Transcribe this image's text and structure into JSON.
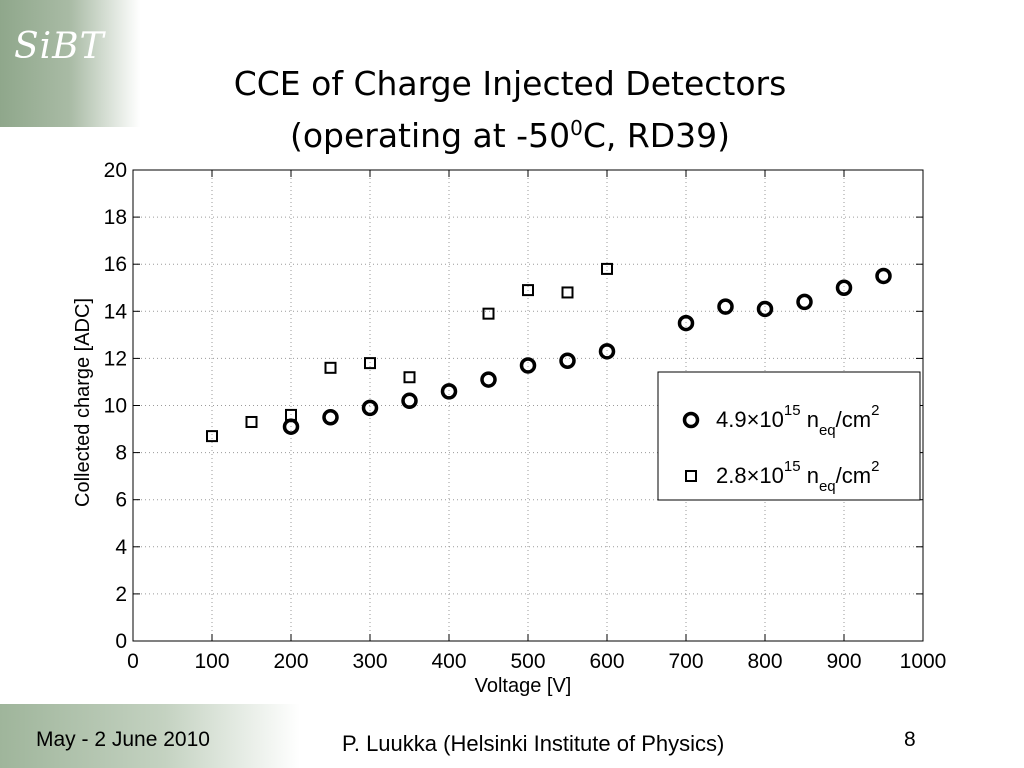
{
  "logo": {
    "text": "SiBT"
  },
  "slide": {
    "title_line1": "CCE of Charge Injected Detectors",
    "title_line2_prefix": "(operating at -50",
    "title_line2_sup": "0",
    "title_line2_suffix": "C, RD39)"
  },
  "footer": {
    "date": "May - 2 June 2010",
    "author": "P. Luukka (Helsinki Institute of Physics)",
    "page": "8"
  },
  "chart_data": {
    "type": "scatter",
    "xlabel": "Voltage [V]",
    "ylabel": "Collected charge [ADC]",
    "xlim": [
      0,
      1000
    ],
    "ylim": [
      0,
      20
    ],
    "xticks": [
      0,
      100,
      200,
      300,
      400,
      500,
      600,
      700,
      800,
      900,
      1000
    ],
    "yticks": [
      0,
      2,
      4,
      6,
      8,
      10,
      12,
      14,
      16,
      18,
      20
    ],
    "grid": true,
    "legend_position": "right",
    "series": [
      {
        "name": "4.9×10^15 n_eq/cm^2",
        "legend": {
          "base": "4.9×10",
          "exp": "15",
          "n": " n",
          "sub": "eq",
          "unit": "/cm",
          "unit_exp": "2"
        },
        "marker": "circle",
        "color": "#000000",
        "points": [
          [
            200,
            9.1
          ],
          [
            250,
            9.5
          ],
          [
            300,
            9.9
          ],
          [
            350,
            10.2
          ],
          [
            400,
            10.6
          ],
          [
            450,
            11.1
          ],
          [
            500,
            11.7
          ],
          [
            550,
            11.9
          ],
          [
            600,
            12.3
          ],
          [
            700,
            13.5
          ],
          [
            750,
            14.2
          ],
          [
            800,
            14.1
          ],
          [
            850,
            14.4
          ],
          [
            900,
            15.0
          ],
          [
            950,
            15.5
          ]
        ]
      },
      {
        "name": "2.8×10^15 n_eq/cm^2",
        "legend": {
          "base": "2.8×10",
          "exp": "15",
          "n": " n",
          "sub": "eq",
          "unit": "/cm",
          "unit_exp": "2"
        },
        "marker": "square",
        "color": "#000000",
        "points": [
          [
            100,
            8.7
          ],
          [
            150,
            9.3
          ],
          [
            200,
            9.6
          ],
          [
            250,
            11.6
          ],
          [
            300,
            11.8
          ],
          [
            350,
            11.2
          ],
          [
            450,
            13.9
          ],
          [
            500,
            14.9
          ],
          [
            550,
            14.8
          ],
          [
            600,
            15.8
          ]
        ]
      }
    ]
  }
}
